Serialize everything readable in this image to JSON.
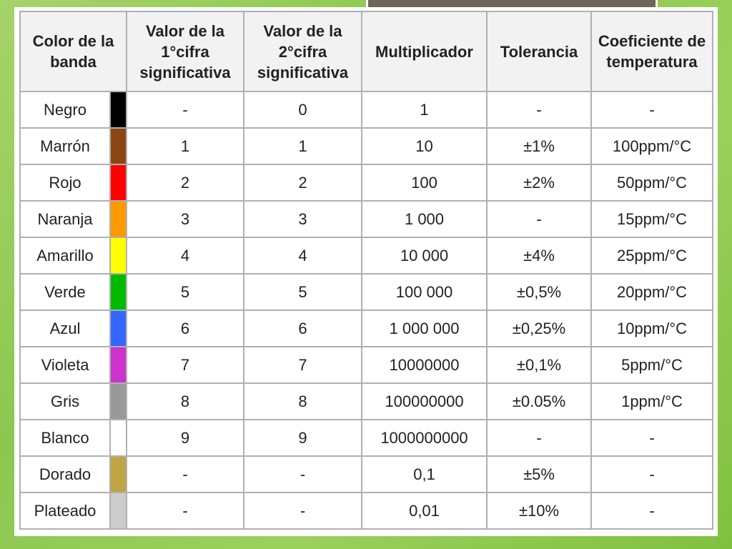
{
  "table": {
    "headers": {
      "color": "Color de la banda",
      "digit1": "Valor de la 1°cifra significativa",
      "digit2": "Valor de la 2°cifra significativa",
      "multiplier": "Multiplicador",
      "tolerance": "Tolerancia",
      "temp_coeff": "Coeficiente de temperatura"
    },
    "rows": [
      {
        "name": "Negro",
        "color": "#000000",
        "d1": "-",
        "d2": "0",
        "mult": "1",
        "tol": "-",
        "tc": "-"
      },
      {
        "name": "Marrón",
        "color": "#8b4513",
        "d1": "1",
        "d2": "1",
        "mult": "10",
        "tol": "±1%",
        "tc": "100ppm/°C"
      },
      {
        "name": "Rojo",
        "color": "#ff0000",
        "d1": "2",
        "d2": "2",
        "mult": "100",
        "tol": "±2%",
        "tc": "50ppm/°C"
      },
      {
        "name": "Naranja",
        "color": "#ff9900",
        "d1": "3",
        "d2": "3",
        "mult": "1 000",
        "tol": "-",
        "tc": "15ppm/°C"
      },
      {
        "name": "Amarillo",
        "color": "#ffff00",
        "d1": "4",
        "d2": "4",
        "mult": "10 000",
        "tol": "±4%",
        "tc": "25ppm/°C"
      },
      {
        "name": "Verde",
        "color": "#00bb00",
        "d1": "5",
        "d2": "5",
        "mult": "100 000",
        "tol": "±0,5%",
        "tc": "20ppm/°C"
      },
      {
        "name": "Azul",
        "color": "#3366ff",
        "d1": "6",
        "d2": "6",
        "mult": "1 000 000",
        "tol": "±0,25%",
        "tc": "10ppm/°C"
      },
      {
        "name": "Violeta",
        "color": "#cc33cc",
        "d1": "7",
        "d2": "7",
        "mult": "10000000",
        "tol": "±0,1%",
        "tc": "5ppm/°C"
      },
      {
        "name": "Gris",
        "color": "#999999",
        "d1": "8",
        "d2": "8",
        "mult": "100000000",
        "tol": "±0.05%",
        "tc": "1ppm/°C"
      },
      {
        "name": "Blanco",
        "color": "#ffffff",
        "d1": "9",
        "d2": "9",
        "mult": "1000000000",
        "tol": "-",
        "tc": "-"
      },
      {
        "name": "Dorado",
        "color": "#bfa544",
        "d1": "-",
        "d2": "-",
        "mult": "0,1",
        "tol": "±5%",
        "tc": "-"
      },
      {
        "name": "Plateado",
        "color": "#cccccc",
        "d1": "-",
        "d2": "-",
        "mult": "0,01",
        "tol": "±10%",
        "tc": "-"
      }
    ]
  }
}
